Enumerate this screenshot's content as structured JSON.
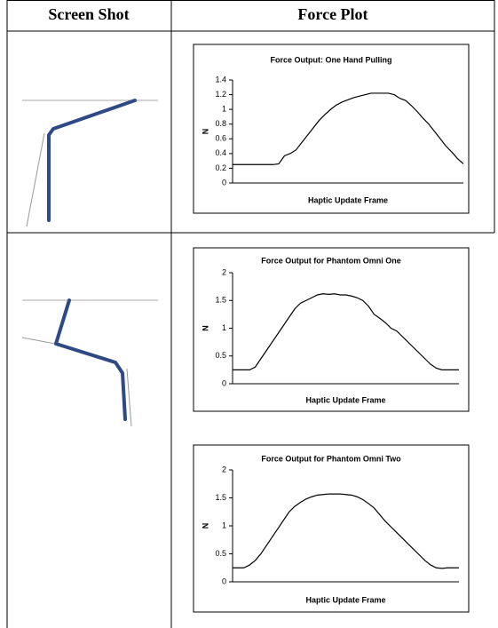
{
  "table": {
    "headers": [
      "Screen Shot",
      "Force Plot"
    ]
  },
  "chart_data": [
    {
      "type": "line",
      "title": "Force Output: One Hand Pulling",
      "xlabel": "Haptic Update Frame",
      "ylabel": "N",
      "color": "#000000",
      "ylim": [
        0,
        1.4
      ],
      "yticks": [
        0,
        0.2,
        0.4,
        0.6,
        0.8,
        1,
        1.2,
        1.4
      ],
      "values": [
        0.25,
        0.25,
        0.25,
        0.25,
        0.25,
        0.25,
        0.25,
        0.25,
        0.26,
        0.37,
        0.4,
        0.45,
        0.55,
        0.65,
        0.75,
        0.85,
        0.93,
        1.0,
        1.06,
        1.1,
        1.13,
        1.16,
        1.18,
        1.2,
        1.22,
        1.22,
        1.22,
        1.22,
        1.2,
        1.15,
        1.12,
        1.05,
        0.97,
        0.88,
        0.8,
        0.7,
        0.6,
        0.5,
        0.42,
        0.33,
        0.26
      ]
    },
    {
      "type": "line",
      "title": "Force Output for Phantom Omni One",
      "xlabel": "Haptic Update Frame",
      "ylabel": "N",
      "color": "#000000",
      "ylim": [
        0,
        2
      ],
      "yticks": [
        0,
        0.5,
        1,
        1.5,
        2
      ],
      "values": [
        0.25,
        0.25,
        0.25,
        0.25,
        0.3,
        0.45,
        0.6,
        0.75,
        0.9,
        1.05,
        1.2,
        1.35,
        1.45,
        1.5,
        1.55,
        1.6,
        1.62,
        1.61,
        1.62,
        1.6,
        1.6,
        1.58,
        1.55,
        1.5,
        1.4,
        1.25,
        1.18,
        1.1,
        1.0,
        0.95,
        0.85,
        0.75,
        0.65,
        0.55,
        0.45,
        0.35,
        0.28,
        0.25,
        0.25,
        0.25,
        0.25
      ]
    },
    {
      "type": "line",
      "title": "Force Output for Phantom Omni Two",
      "xlabel": "Haptic Update Frame",
      "ylabel": "N",
      "color": "#000000",
      "ylim": [
        0,
        2
      ],
      "yticks": [
        0,
        0.5,
        1,
        1.5,
        2
      ],
      "values": [
        0.25,
        0.25,
        0.25,
        0.3,
        0.38,
        0.5,
        0.65,
        0.8,
        0.95,
        1.1,
        1.25,
        1.35,
        1.42,
        1.48,
        1.52,
        1.55,
        1.56,
        1.57,
        1.57,
        1.57,
        1.56,
        1.55,
        1.52,
        1.47,
        1.4,
        1.32,
        1.2,
        1.08,
        0.98,
        0.88,
        0.78,
        0.68,
        0.58,
        0.48,
        0.38,
        0.3,
        0.25,
        0.24,
        0.25,
        0.25,
        0.25
      ]
    }
  ]
}
